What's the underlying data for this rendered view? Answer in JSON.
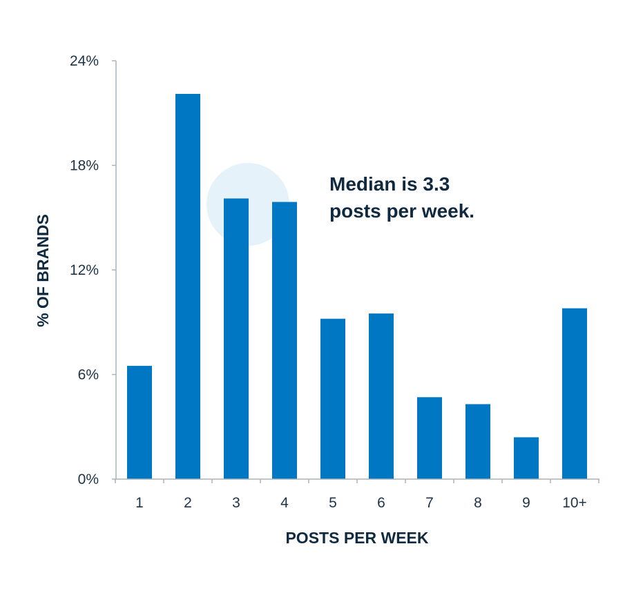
{
  "chart_data": {
    "type": "bar",
    "categories": [
      "1",
      "2",
      "3",
      "4",
      "5",
      "6",
      "7",
      "8",
      "9",
      "10+"
    ],
    "values": [
      6.5,
      22.1,
      16.1,
      15.9,
      9.2,
      9.5,
      4.7,
      4.3,
      2.4,
      9.8
    ],
    "xlabel": "POSTS PER WEEK",
    "ylabel": "% OF BRANDS",
    "ylim": [
      0,
      24
    ],
    "yticks": [
      0,
      6,
      12,
      18,
      24
    ],
    "ytick_labels": [
      "0%",
      "6%",
      "12%",
      "18%",
      "24%"
    ],
    "grid": false,
    "bar_color": "#0077c2",
    "highlight": {
      "category": "3",
      "value": 16,
      "color": "#e6f2fa"
    },
    "annotation": {
      "lines": [
        "Median is 3.3",
        "posts per week."
      ]
    }
  }
}
